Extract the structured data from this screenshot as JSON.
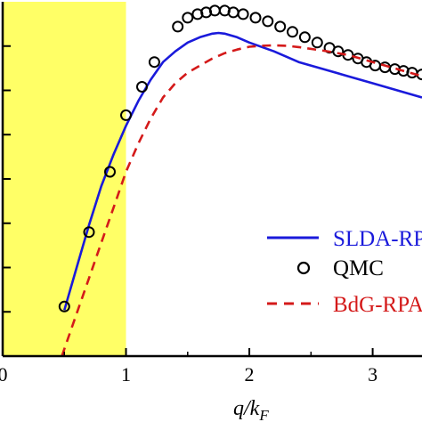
{
  "chart_data": {
    "type": "line",
    "xlabel": "q/k_F",
    "xlabel_parts": {
      "main": "q/k",
      "sub": "F"
    },
    "x_tick_labels": [
      "0",
      "1",
      "2",
      "3"
    ],
    "x_ticks": [
      0,
      1,
      2,
      3
    ],
    "xlim": [
      0,
      3.4
    ],
    "ylim": [
      0,
      1
    ],
    "y_ticks": [
      0.125,
      0.25,
      0.375,
      0.5,
      0.625,
      0.75,
      0.875
    ],
    "y_tick_labels_visible": false,
    "shaded_region": {
      "x": [
        0,
        1
      ],
      "color": "#ffff66"
    },
    "grid": false,
    "legend_placement": "bottom-right",
    "series": [
      {
        "name": "SLDA-RPA",
        "style": "solid",
        "color": "#1a1adb",
        "x": [
          0.5,
          0.6,
          0.7,
          0.8,
          0.9,
          1.0,
          1.1,
          1.2,
          1.3,
          1.4,
          1.5,
          1.6,
          1.7,
          1.75,
          1.8,
          1.9,
          2.0,
          2.2,
          2.4,
          2.6,
          2.8,
          3.0,
          3.2,
          3.4
        ],
        "y": [
          0.13,
          0.25,
          0.37,
          0.48,
          0.57,
          0.65,
          0.72,
          0.78,
          0.83,
          0.86,
          0.885,
          0.9,
          0.91,
          0.912,
          0.91,
          0.9,
          0.885,
          0.86,
          0.83,
          0.81,
          0.79,
          0.77,
          0.75,
          0.73
        ]
      },
      {
        "name": "QMC",
        "style": "markers",
        "color": "#000000",
        "x": [
          0.5,
          0.7,
          0.87,
          1.0,
          1.13,
          1.23,
          1.42,
          1.5,
          1.58,
          1.65,
          1.72,
          1.8,
          1.87,
          1.95,
          2.05,
          2.15,
          2.25,
          2.35,
          2.45,
          2.55,
          2.65,
          2.72,
          2.8,
          2.88,
          2.95,
          3.02,
          3.1,
          3.18,
          3.25,
          3.32,
          3.4
        ],
        "y": [
          0.14,
          0.35,
          0.52,
          0.68,
          0.76,
          0.83,
          0.93,
          0.955,
          0.965,
          0.97,
          0.975,
          0.975,
          0.97,
          0.965,
          0.955,
          0.945,
          0.93,
          0.915,
          0.9,
          0.885,
          0.87,
          0.86,
          0.85,
          0.84,
          0.83,
          0.82,
          0.815,
          0.81,
          0.805,
          0.8,
          0.795
        ]
      },
      {
        "name": "BdG-RPA",
        "style": "dashed",
        "color": "#d41a1a",
        "x": [
          0.48,
          0.6,
          0.7,
          0.8,
          0.9,
          1.0,
          1.1,
          1.2,
          1.3,
          1.4,
          1.5,
          1.6,
          1.7,
          1.8,
          1.9,
          2.0,
          2.1,
          2.2,
          2.3,
          2.4,
          2.6,
          2.8,
          3.0,
          3.2,
          3.4
        ],
        "y": [
          0.0,
          0.12,
          0.22,
          0.32,
          0.42,
          0.52,
          0.6,
          0.67,
          0.73,
          0.77,
          0.8,
          0.82,
          0.84,
          0.855,
          0.865,
          0.873,
          0.876,
          0.877,
          0.876,
          0.872,
          0.862,
          0.85,
          0.83,
          0.81,
          0.79
        ]
      }
    ]
  }
}
